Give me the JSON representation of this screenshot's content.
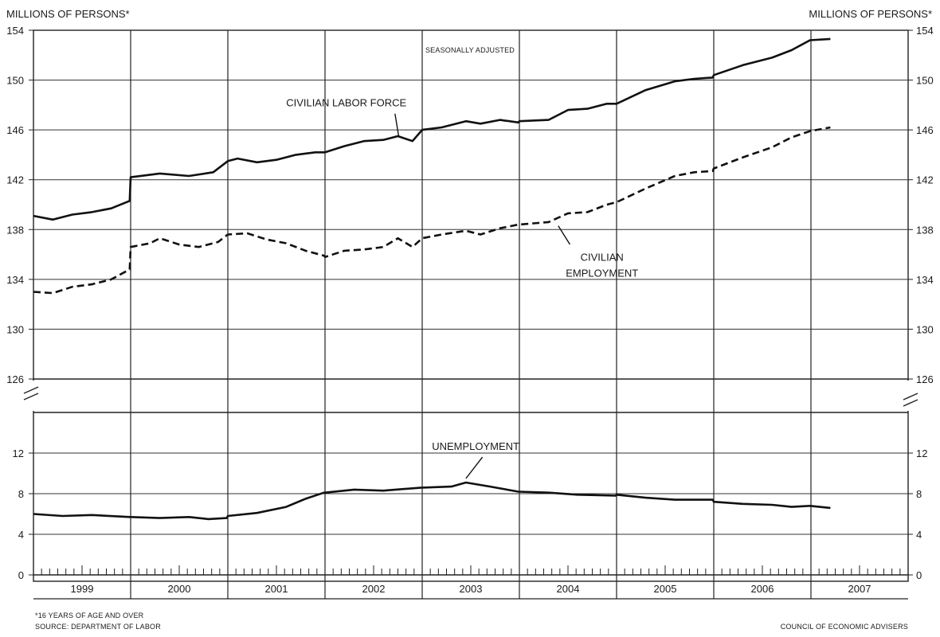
{
  "header": {
    "left_unit": "MILLIONS OF PERSONS*",
    "right_unit": "MILLIONS OF PERSONS*",
    "subtitle": "SEASONALLY ADJUSTED"
  },
  "footer": {
    "note": "*16 YEARS OF AGE AND OVER",
    "source": "SOURCE: DEPARTMENT OF LABOR",
    "credit": "COUNCIL OF ECONOMIC ADVISERS"
  },
  "chart_data": {
    "type": "line",
    "years": [
      "1999",
      "2000",
      "2001",
      "2002",
      "2003",
      "2004",
      "2005",
      "2006",
      "2007"
    ],
    "x_range": [
      1999.0,
      2008.0
    ],
    "upper_panel": {
      "ylim": [
        126,
        154
      ],
      "yticks": [
        "126",
        "130",
        "134",
        "138",
        "142",
        "146",
        "150",
        "154"
      ]
    },
    "lower_panel": {
      "ylim": [
        0,
        16
      ],
      "yticks": [
        "0",
        "4",
        "8",
        "12"
      ]
    },
    "grid": true,
    "series": [
      {
        "name": "CIVILIAN LABOR FORCE",
        "panel": "upper",
        "style": "solid",
        "points": [
          [
            1999.0,
            139.1
          ],
          [
            1999.2,
            138.8
          ],
          [
            1999.4,
            139.2
          ],
          [
            1999.6,
            139.4
          ],
          [
            1999.8,
            139.7
          ],
          [
            1999.99,
            140.3
          ],
          [
            2000.0,
            142.2
          ],
          [
            2000.3,
            142.5
          ],
          [
            2000.6,
            142.3
          ],
          [
            2000.85,
            142.6
          ],
          [
            2001.0,
            143.5
          ],
          [
            2001.1,
            143.7
          ],
          [
            2001.3,
            143.4
          ],
          [
            2001.5,
            143.6
          ],
          [
            2001.7,
            144.0
          ],
          [
            2001.9,
            144.2
          ],
          [
            2002.0,
            144.2
          ],
          [
            2002.2,
            144.7
          ],
          [
            2002.4,
            145.1
          ],
          [
            2002.6,
            145.2
          ],
          [
            2002.75,
            145.5
          ],
          [
            2002.9,
            145.1
          ],
          [
            2003.0,
            146.0
          ],
          [
            2003.2,
            146.2
          ],
          [
            2003.45,
            146.7
          ],
          [
            2003.6,
            146.5
          ],
          [
            2003.8,
            146.8
          ],
          [
            2003.99,
            146.6
          ],
          [
            2004.0,
            146.7
          ],
          [
            2004.3,
            146.8
          ],
          [
            2004.5,
            147.6
          ],
          [
            2004.7,
            147.7
          ],
          [
            2004.9,
            148.1
          ],
          [
            2005.0,
            148.1
          ],
          [
            2005.3,
            149.2
          ],
          [
            2005.6,
            149.9
          ],
          [
            2005.8,
            150.1
          ],
          [
            2005.99,
            150.2
          ],
          [
            2006.0,
            150.4
          ],
          [
            2006.3,
            151.2
          ],
          [
            2006.6,
            151.8
          ],
          [
            2006.8,
            152.4
          ],
          [
            2006.99,
            153.2
          ],
          [
            2007.2,
            153.3
          ]
        ]
      },
      {
        "name": "CIVILIAN EMPLOYMENT",
        "panel": "upper",
        "style": "dashed",
        "points": [
          [
            1999.0,
            133.0
          ],
          [
            1999.2,
            132.9
          ],
          [
            1999.4,
            133.4
          ],
          [
            1999.6,
            133.6
          ],
          [
            1999.8,
            134.0
          ],
          [
            1999.99,
            134.8
          ],
          [
            2000.0,
            136.6
          ],
          [
            2000.2,
            136.9
          ],
          [
            2000.3,
            137.3
          ],
          [
            2000.5,
            136.8
          ],
          [
            2000.7,
            136.6
          ],
          [
            2000.9,
            137.0
          ],
          [
            2001.0,
            137.6
          ],
          [
            2001.2,
            137.7
          ],
          [
            2001.4,
            137.2
          ],
          [
            2001.6,
            136.9
          ],
          [
            2001.8,
            136.3
          ],
          [
            2001.99,
            135.9
          ],
          [
            2002.0,
            135.8
          ],
          [
            2002.2,
            136.3
          ],
          [
            2002.4,
            136.4
          ],
          [
            2002.6,
            136.6
          ],
          [
            2002.75,
            137.3
          ],
          [
            2002.9,
            136.6
          ],
          [
            2003.0,
            137.3
          ],
          [
            2003.2,
            137.6
          ],
          [
            2003.45,
            137.9
          ],
          [
            2003.6,
            137.6
          ],
          [
            2003.8,
            138.1
          ],
          [
            2003.99,
            138.4
          ],
          [
            2004.0,
            138.4
          ],
          [
            2004.3,
            138.6
          ],
          [
            2004.5,
            139.3
          ],
          [
            2004.7,
            139.4
          ],
          [
            2004.9,
            140.0
          ],
          [
            2005.0,
            140.2
          ],
          [
            2005.3,
            141.3
          ],
          [
            2005.6,
            142.3
          ],
          [
            2005.8,
            142.6
          ],
          [
            2005.99,
            142.7
          ],
          [
            2006.0,
            142.9
          ],
          [
            2006.3,
            143.8
          ],
          [
            2006.6,
            144.6
          ],
          [
            2006.8,
            145.4
          ],
          [
            2006.99,
            145.9
          ],
          [
            2007.2,
            146.2
          ]
        ]
      },
      {
        "name": "UNEMPLOYMENT",
        "panel": "lower",
        "style": "solid",
        "points": [
          [
            1999.0,
            6.0
          ],
          [
            1999.3,
            5.8
          ],
          [
            1999.6,
            5.9
          ],
          [
            1999.99,
            5.7
          ],
          [
            2000.0,
            5.7
          ],
          [
            2000.3,
            5.6
          ],
          [
            2000.6,
            5.7
          ],
          [
            2000.8,
            5.5
          ],
          [
            2000.99,
            5.6
          ],
          [
            2001.0,
            5.8
          ],
          [
            2001.3,
            6.1
          ],
          [
            2001.6,
            6.7
          ],
          [
            2001.8,
            7.5
          ],
          [
            2001.99,
            8.1
          ],
          [
            2002.0,
            8.1
          ],
          [
            2002.3,
            8.4
          ],
          [
            2002.6,
            8.3
          ],
          [
            2002.99,
            8.6
          ],
          [
            2003.0,
            8.6
          ],
          [
            2003.3,
            8.7
          ],
          [
            2003.45,
            9.1
          ],
          [
            2003.7,
            8.7
          ],
          [
            2003.99,
            8.2
          ],
          [
            2004.0,
            8.2
          ],
          [
            2004.3,
            8.1
          ],
          [
            2004.6,
            7.9
          ],
          [
            2004.99,
            7.8
          ],
          [
            2005.0,
            7.9
          ],
          [
            2005.3,
            7.6
          ],
          [
            2005.6,
            7.4
          ],
          [
            2005.99,
            7.4
          ],
          [
            2006.0,
            7.2
          ],
          [
            2006.3,
            7.0
          ],
          [
            2006.6,
            6.9
          ],
          [
            2006.8,
            6.7
          ],
          [
            2006.99,
            6.8
          ],
          [
            2007.2,
            6.6
          ]
        ]
      }
    ],
    "annotations": [
      {
        "text": "CIVILIAN LABOR FORCE",
        "points_to": [
          2002.75,
          145.2
        ]
      },
      {
        "text": "CIVILIAN EMPLOYMENT",
        "points_to": [
          2004.4,
          138.5
        ]
      },
      {
        "text": "UNEMPLOYMENT",
        "points_to": [
          2003.45,
          9.1
        ]
      }
    ]
  }
}
